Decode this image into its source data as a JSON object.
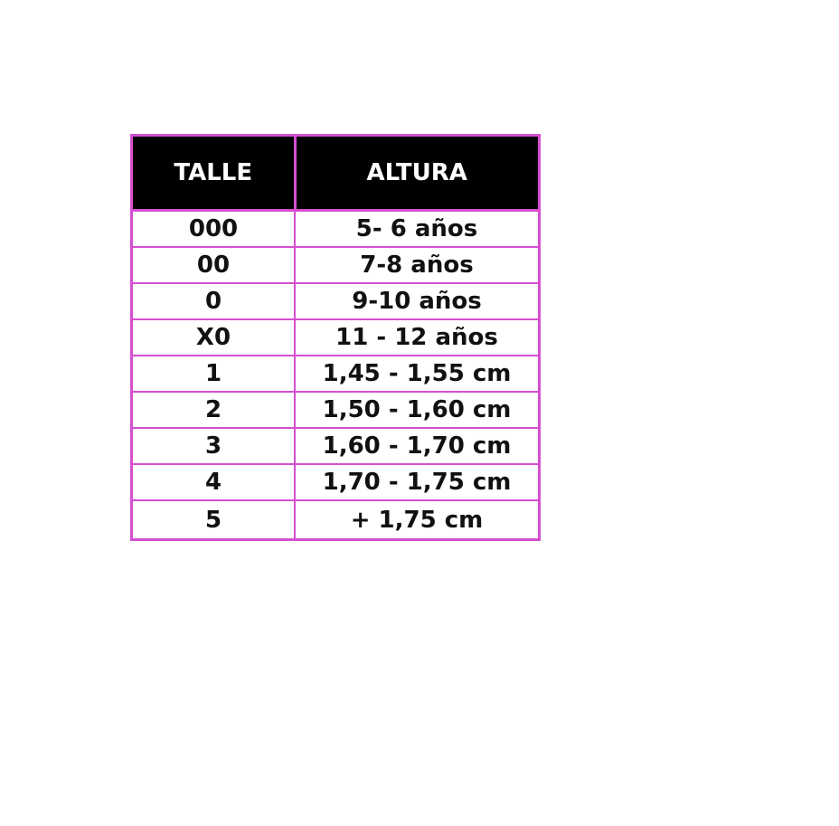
{
  "table": {
    "headers": [
      "TALLE",
      "ALTURA"
    ],
    "rows": [
      [
        "000",
        "5- 6 años"
      ],
      [
        "00",
        "7-8 años"
      ],
      [
        "0",
        "9-10 años"
      ],
      [
        "X0",
        "11 - 12 años"
      ],
      [
        "1",
        "1,45 - 1,55 cm"
      ],
      [
        "2",
        "1,50 - 1,60 cm"
      ],
      [
        "3",
        "1,60 - 1,70 cm"
      ],
      [
        "4",
        "1,70 - 1,75 cm"
      ],
      [
        "5",
        "+ 1,75 cm"
      ]
    ]
  },
  "colors": {
    "border": "#d54fd0",
    "header_bg": "#000000",
    "header_text": "#ffffff"
  }
}
